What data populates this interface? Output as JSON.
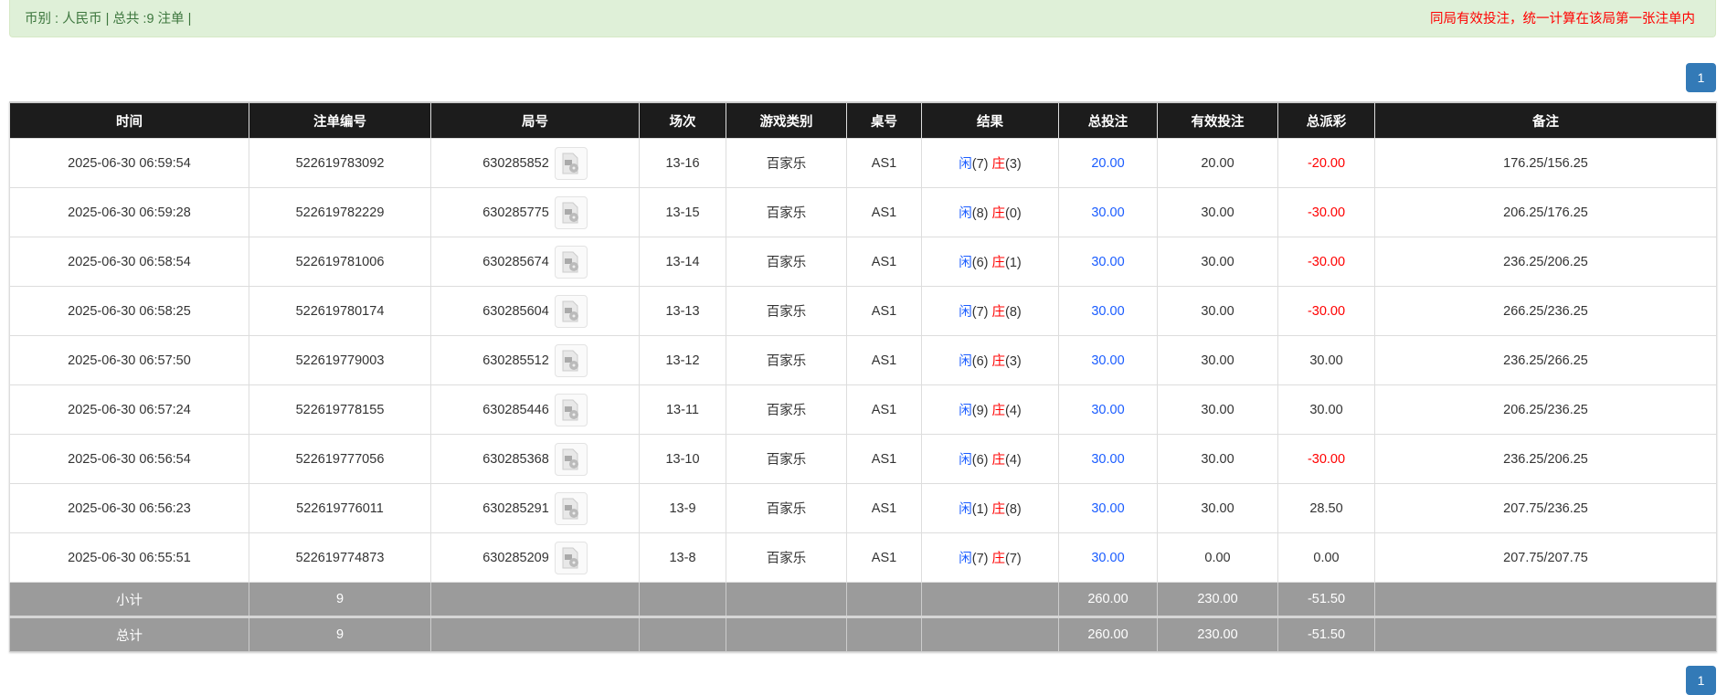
{
  "info": {
    "left": "币别 : 人民币 | 总共 :9 注单 |",
    "right": "同局有效投注，统一计算在该局第一张注单内"
  },
  "pagination": {
    "page": "1"
  },
  "columns": [
    "时间",
    "注单编号",
    "局号",
    "场次",
    "游戏类别",
    "桌号",
    "结果",
    "总投注",
    "有效投注",
    "总派彩",
    "备注"
  ],
  "result_labels": {
    "player": "闲",
    "banker": "庄"
  },
  "rows": [
    {
      "time": "2025-06-30 06:59:54",
      "bet_id": "522619783092",
      "round": "630285852",
      "session": "13-16",
      "game": "百家乐",
      "table": "AS1",
      "p": "(7)",
      "b": "(3)",
      "total": "20.00",
      "valid": "20.00",
      "payout": "-20.00",
      "neg": true,
      "note": "176.25/156.25"
    },
    {
      "time": "2025-06-30 06:59:28",
      "bet_id": "522619782229",
      "round": "630285775",
      "session": "13-15",
      "game": "百家乐",
      "table": "AS1",
      "p": "(8)",
      "b": "(0)",
      "total": "30.00",
      "valid": "30.00",
      "payout": "-30.00",
      "neg": true,
      "note": "206.25/176.25"
    },
    {
      "time": "2025-06-30 06:58:54",
      "bet_id": "522619781006",
      "round": "630285674",
      "session": "13-14",
      "game": "百家乐",
      "table": "AS1",
      "p": "(6)",
      "b": "(1)",
      "total": "30.00",
      "valid": "30.00",
      "payout": "-30.00",
      "neg": true,
      "note": "236.25/206.25"
    },
    {
      "time": "2025-06-30 06:58:25",
      "bet_id": "522619780174",
      "round": "630285604",
      "session": "13-13",
      "game": "百家乐",
      "table": "AS1",
      "p": "(7)",
      "b": "(8)",
      "total": "30.00",
      "valid": "30.00",
      "payout": "-30.00",
      "neg": true,
      "note": "266.25/236.25"
    },
    {
      "time": "2025-06-30 06:57:50",
      "bet_id": "522619779003",
      "round": "630285512",
      "session": "13-12",
      "game": "百家乐",
      "table": "AS1",
      "p": "(6)",
      "b": "(3)",
      "total": "30.00",
      "valid": "30.00",
      "payout": "30.00",
      "neg": false,
      "note": "236.25/266.25"
    },
    {
      "time": "2025-06-30 06:57:24",
      "bet_id": "522619778155",
      "round": "630285446",
      "session": "13-11",
      "game": "百家乐",
      "table": "AS1",
      "p": "(9)",
      "b": "(4)",
      "total": "30.00",
      "valid": "30.00",
      "payout": "30.00",
      "neg": false,
      "note": "206.25/236.25"
    },
    {
      "time": "2025-06-30 06:56:54",
      "bet_id": "522619777056",
      "round": "630285368",
      "session": "13-10",
      "game": "百家乐",
      "table": "AS1",
      "p": "(6)",
      "b": "(4)",
      "total": "30.00",
      "valid": "30.00",
      "payout": "-30.00",
      "neg": true,
      "note": "236.25/206.25"
    },
    {
      "time": "2025-06-30 06:56:23",
      "bet_id": "522619776011",
      "round": "630285291",
      "session": "13-9",
      "game": "百家乐",
      "table": "AS1",
      "p": "(1)",
      "b": "(8)",
      "total": "30.00",
      "valid": "30.00",
      "payout": "28.50",
      "neg": false,
      "note": "207.75/236.25"
    },
    {
      "time": "2025-06-30 06:55:51",
      "bet_id": "522619774873",
      "round": "630285209",
      "session": "13-8",
      "game": "百家乐",
      "table": "AS1",
      "p": "(7)",
      "b": "(7)",
      "total": "30.00",
      "valid": "0.00",
      "payout": "0.00",
      "neg": false,
      "note": "207.75/207.75"
    }
  ],
  "subtotal": {
    "label": "小计",
    "count": "9",
    "total": "260.00",
    "valid": "230.00",
    "payout": "-51.50"
  },
  "grandtotal": {
    "label": "总计",
    "count": "9",
    "total": "260.00",
    "valid": "230.00",
    "payout": "-51.50"
  },
  "colors": {
    "accent": "#337ab7",
    "info_bg": "#dff0d8",
    "negative": "#ff0000",
    "player": "#1a5cff",
    "header_bg": "#1c1c1c",
    "summary_bg": "#9b9b9b"
  }
}
